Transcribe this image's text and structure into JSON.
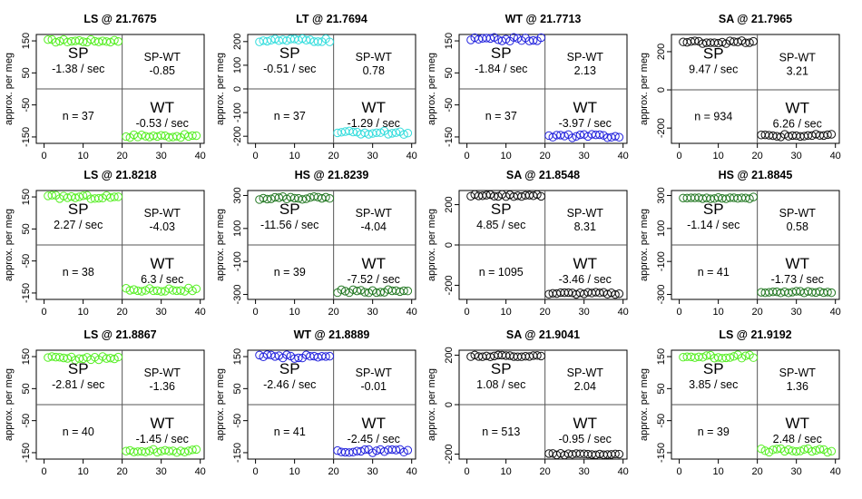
{
  "y_axis_label": "approx. per meg",
  "x_ticks": [
    0,
    10,
    20,
    30,
    40
  ],
  "chart_data": [
    {
      "type": "scatter",
      "title": "LS @ 21.7675",
      "color": "#55ee22",
      "ylim": [
        -170,
        170
      ],
      "yticks": [
        "150",
        "50",
        "-50",
        "-150"
      ],
      "ytick_values": [
        150,
        50,
        -50,
        -150
      ],
      "sp_mean": 150,
      "wt_mean": -147,
      "noise": 5,
      "sp_label": "SP",
      "sp_rate": "-1.38 / sec",
      "diff_label": "SP-WT",
      "diff_value": "-0.85",
      "n_label": "n = 37",
      "wt_label": "WT",
      "wt_rate": "-0.53 / sec"
    },
    {
      "type": "scatter",
      "title": "LT @ 21.7694",
      "color": "#33dddd",
      "ylim": [
        -230,
        230
      ],
      "yticks": [
        "200",
        "100",
        "0",
        "-100",
        "-200"
      ],
      "ytick_values": [
        200,
        100,
        0,
        -100,
        -200
      ],
      "sp_mean": 205,
      "wt_mean": -185,
      "noise": 8,
      "sp_label": "SP",
      "sp_rate": "-0.51 / sec",
      "diff_label": "SP-WT",
      "diff_value": "0.78",
      "n_label": "n = 37",
      "wt_label": "WT",
      "wt_rate": "-1.29 / sec"
    },
    {
      "type": "scatter",
      "title": "WT @ 21.7713",
      "color": "#2222dd",
      "ylim": [
        -170,
        170
      ],
      "yticks": [
        "150",
        "50",
        "-50",
        "-150"
      ],
      "ytick_values": [
        150,
        50,
        -50,
        -150
      ],
      "sp_mean": 155,
      "wt_mean": -147,
      "noise": 6,
      "sp_label": "SP",
      "sp_rate": "-1.84 / sec",
      "diff_label": "SP-WT",
      "diff_value": "2.13",
      "n_label": "n = 37",
      "wt_label": "WT",
      "wt_rate": "-3.97 / sec"
    },
    {
      "type": "scatter",
      "title": "SA @ 21.7965",
      "color": "#111111",
      "ylim": [
        -280,
        290
      ],
      "yticks": [
        "200",
        "0",
        "-200"
      ],
      "ytick_values": [
        200,
        0,
        -200
      ],
      "sp_mean": 250,
      "wt_mean": -240,
      "noise": 8,
      "sp_label": "SP",
      "sp_rate": "9.47 / sec",
      "diff_label": "SP-WT",
      "diff_value": "3.21",
      "n_label": "n = 934",
      "wt_label": "WT",
      "wt_rate": "6.26 / sec"
    },
    {
      "type": "scatter",
      "title": "LS @ 21.8218",
      "color": "#55ee22",
      "ylim": [
        -170,
        170
      ],
      "yticks": [
        "150",
        "50",
        "-50",
        "-150"
      ],
      "ytick_values": [
        150,
        50,
        -50,
        -150
      ],
      "sp_mean": 150,
      "wt_mean": -140,
      "noise": 6,
      "sp_label": "SP",
      "sp_rate": "2.27 / sec",
      "diff_label": "SP-WT",
      "diff_value": "-4.03",
      "n_label": "n = 38",
      "wt_label": "WT",
      "wt_rate": "6.3 / sec"
    },
    {
      "type": "scatter",
      "title": "HS @ 21.8239",
      "color": "#227722",
      "ylim": [
        -330,
        330
      ],
      "yticks": [
        "300",
        "100",
        "-100",
        "-300"
      ],
      "ytick_values": [
        300,
        100,
        -100,
        -300
      ],
      "sp_mean": 285,
      "wt_mean": -280,
      "noise": 10,
      "sp_label": "SP",
      "sp_rate": "-11.56 / sec",
      "diff_label": "SP-WT",
      "diff_value": "-4.04",
      "n_label": "n = 39",
      "wt_label": "WT",
      "wt_rate": "-7.52 / sec"
    },
    {
      "type": "scatter",
      "title": "SA @ 21.8548",
      "color": "#111111",
      "ylim": [
        -270,
        270
      ],
      "yticks": [
        "200",
        "0",
        "-200"
      ],
      "ytick_values": [
        200,
        0,
        -200
      ],
      "sp_mean": 245,
      "wt_mean": -240,
      "noise": 6,
      "sp_label": "SP",
      "sp_rate": "4.85 / sec",
      "diff_label": "SP-WT",
      "diff_value": "8.31",
      "n_label": "n = 1095",
      "wt_label": "WT",
      "wt_rate": "-3.46 / sec"
    },
    {
      "type": "scatter",
      "title": "HS @ 21.8845",
      "color": "#227722",
      "ylim": [
        -330,
        330
      ],
      "yticks": [
        "300",
        "100",
        "-100",
        "-300"
      ],
      "ytick_values": [
        300,
        100,
        -100,
        -300
      ],
      "sp_mean": 285,
      "wt_mean": -285,
      "noise": 6,
      "sp_label": "SP",
      "sp_rate": "-1.14 / sec",
      "diff_label": "SP-WT",
      "diff_value": "0.58",
      "n_label": "n = 41",
      "wt_label": "WT",
      "wt_rate": "-1.73 / sec"
    },
    {
      "type": "scatter",
      "title": "LS @ 21.8867",
      "color": "#55ee22",
      "ylim": [
        -170,
        170
      ],
      "yticks": [
        "150",
        "50",
        "-50",
        "-150"
      ],
      "ytick_values": [
        150,
        50,
        -50,
        -150
      ],
      "sp_mean": 145,
      "wt_mean": -145,
      "noise": 6,
      "sp_label": "SP",
      "sp_rate": "-2.81 / sec",
      "diff_label": "SP-WT",
      "diff_value": "-1.36",
      "n_label": "n = 40",
      "wt_label": "WT",
      "wt_rate": "-1.45 / sec"
    },
    {
      "type": "scatter",
      "title": "WT @ 21.8889",
      "color": "#2222dd",
      "ylim": [
        -170,
        170
      ],
      "yticks": [
        "150",
        "50",
        "-50",
        "-150"
      ],
      "ytick_values": [
        150,
        50,
        -50,
        -150
      ],
      "sp_mean": 150,
      "wt_mean": -145,
      "noise": 6,
      "sp_label": "SP",
      "sp_rate": "-2.46 / sec",
      "diff_label": "SP-WT",
      "diff_value": "-0.01",
      "n_label": "n = 41",
      "wt_label": "WT",
      "wt_rate": "-2.45 / sec"
    },
    {
      "type": "scatter",
      "title": "SA @ 21.9041",
      "color": "#111111",
      "ylim": [
        -220,
        220
      ],
      "yticks": [
        "200",
        "0",
        "-200"
      ],
      "ytick_values": [
        200,
        0,
        -200
      ],
      "sp_mean": 197,
      "wt_mean": -200,
      "noise": 4,
      "sp_label": "SP",
      "sp_rate": "1.08 / sec",
      "diff_label": "SP-WT",
      "diff_value": "2.04",
      "n_label": "n = 513",
      "wt_label": "WT",
      "wt_rate": "-0.95 / sec"
    },
    {
      "type": "scatter",
      "title": "LS @ 21.9192",
      "color": "#55ee22",
      "ylim": [
        -170,
        170
      ],
      "yticks": [
        "150",
        "50",
        "-50",
        "-150"
      ],
      "ytick_values": [
        150,
        50,
        -50,
        -150
      ],
      "sp_mean": 150,
      "wt_mean": -143,
      "noise": 6,
      "sp_label": "SP",
      "sp_rate": "3.85 / sec",
      "diff_label": "SP-WT",
      "diff_value": "1.36",
      "n_label": "n = 39",
      "wt_label": "WT",
      "wt_rate": "2.48 / sec"
    }
  ]
}
